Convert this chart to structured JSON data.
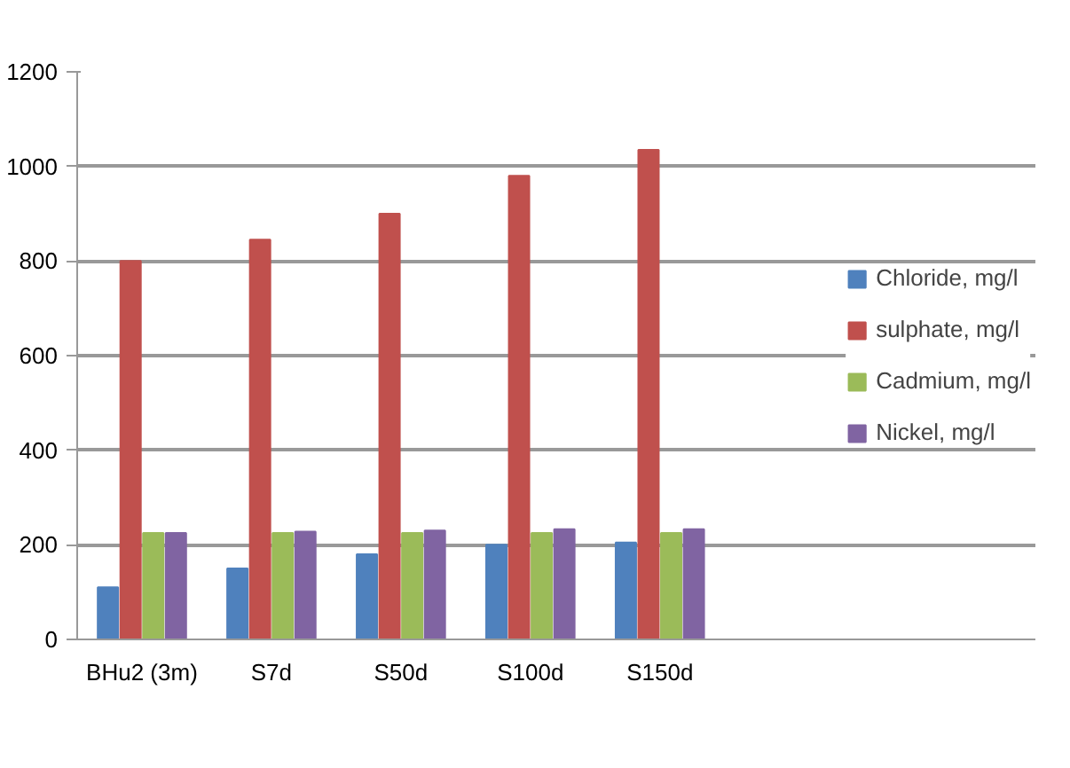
{
  "chart_data": {
    "type": "bar",
    "categories": [
      "BHu2 (3m)",
      "S7d",
      "S50d",
      "S100d",
      "S150d"
    ],
    "series": [
      {
        "name": "Chloride, mg/l",
        "color": "#4f81bd",
        "values": [
          110,
          150,
          180,
          200,
          205
        ]
      },
      {
        "name": "sulphate, mg/l",
        "color": "#c0504d",
        "values": [
          800,
          845,
          900,
          980,
          1035
        ]
      },
      {
        "name": "Cadmium, mg/l",
        "color": "#9bbb59",
        "values": [
          225,
          225,
          225,
          225,
          225
        ]
      },
      {
        "name": "Nickel, mg/l",
        "color": "#8064a2",
        "values": [
          225,
          228,
          230,
          233,
          233
        ]
      }
    ],
    "ylim": [
      0,
      1200
    ],
    "yticks": [
      0,
      200,
      400,
      600,
      800,
      1000,
      1200
    ],
    "grid": "y",
    "legend": "right"
  }
}
